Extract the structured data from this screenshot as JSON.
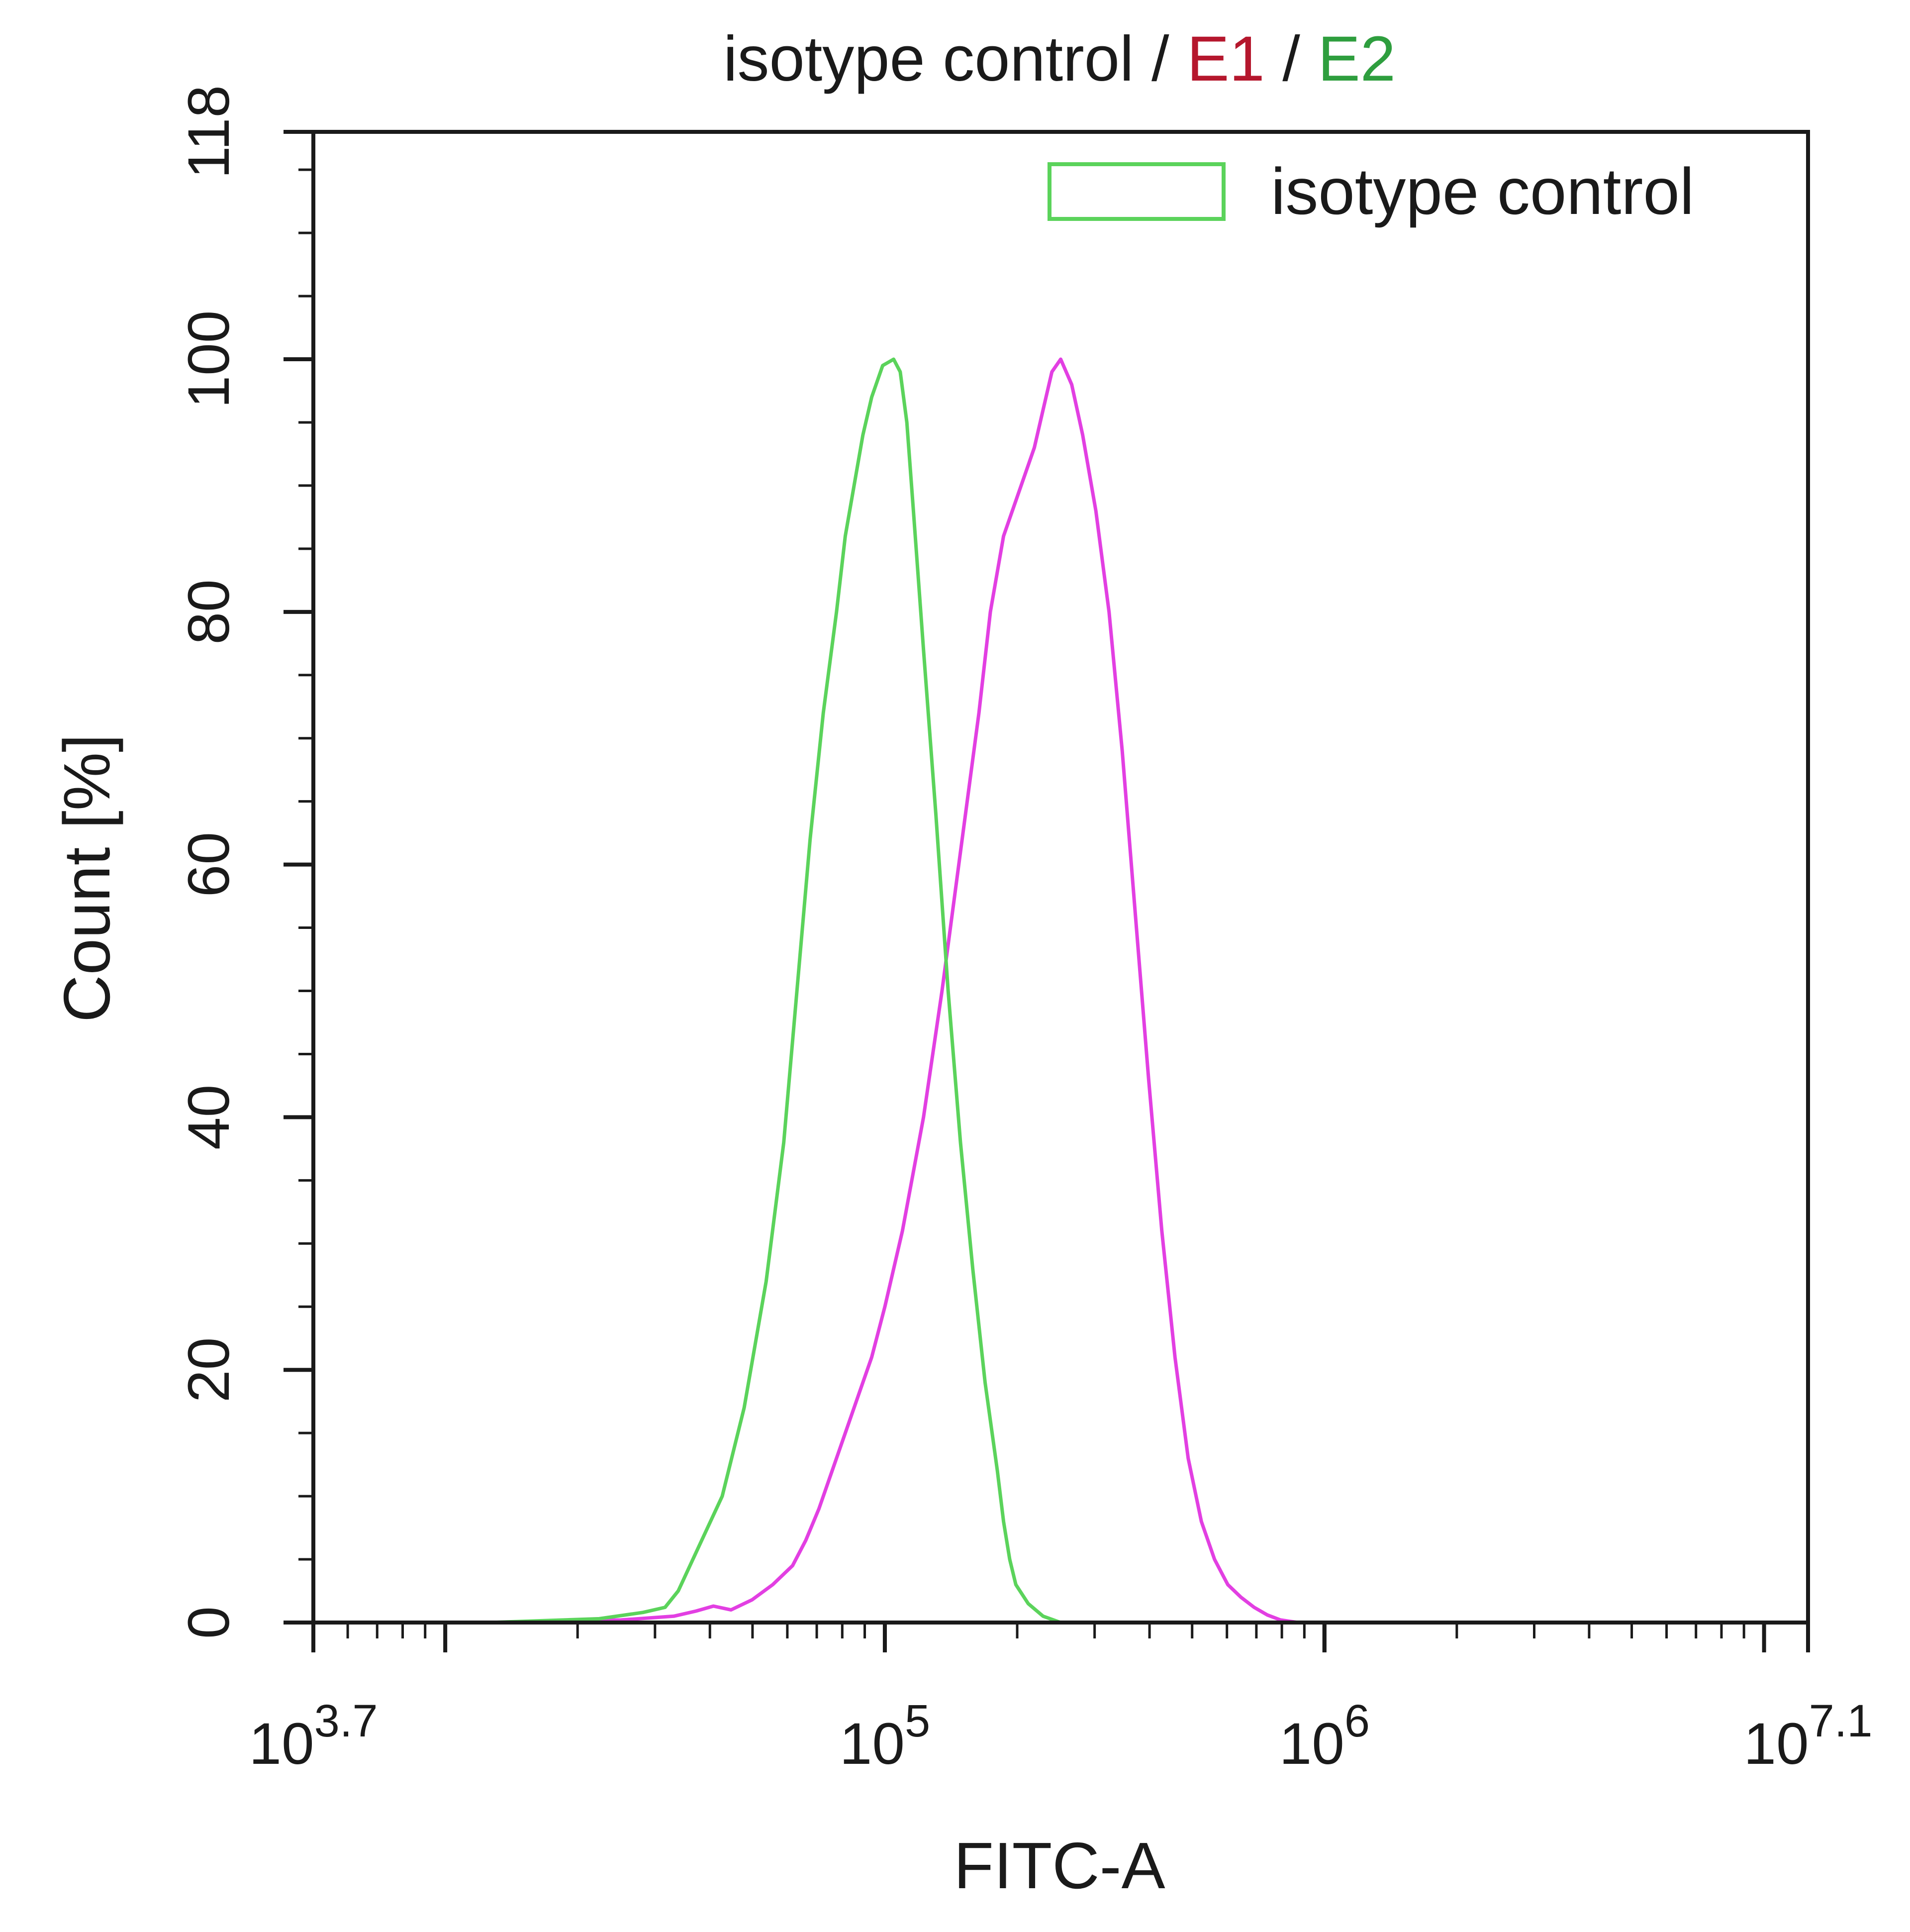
{
  "chart_data": {
    "type": "line",
    "title_parts": [
      {
        "text": "isotype control",
        "color": "#1a1a1a"
      },
      {
        "text": " / ",
        "color": "#1a1a1a"
      },
      {
        "text": "E1",
        "color": "#b5172d"
      },
      {
        "text": " / ",
        "color": "#1a1a1a"
      },
      {
        "text": "E2",
        "color": "#2e9e3e"
      }
    ],
    "xlabel": "FITC-A",
    "ylabel": "Count  [%]",
    "x_scale": "log",
    "xlim": [
      5011.87,
      12589254.1
    ],
    "ylim": [
      0,
      118
    ],
    "x_ticks": [
      {
        "value": 5011.87,
        "base": "10",
        "exp": "3.7"
      },
      {
        "value": 100000,
        "base": "10",
        "exp": "5"
      },
      {
        "value": 1000000,
        "base": "10",
        "exp": "6"
      },
      {
        "value": 12589254.1,
        "base": "10",
        "exp": "7.1"
      }
    ],
    "y_ticks": [
      {
        "value": 0,
        "label": "0"
      },
      {
        "value": 20,
        "label": "20"
      },
      {
        "value": 40,
        "label": "40"
      },
      {
        "value": 60,
        "label": "60"
      },
      {
        "value": 80,
        "label": "80"
      },
      {
        "value": 100,
        "label": "100"
      },
      {
        "value": 118,
        "label": "118"
      }
    ],
    "grid": false,
    "legend_position": "top-right",
    "legend": [
      {
        "name": "isotype control",
        "color": "#5bd35b"
      }
    ],
    "series": [
      {
        "name": "isotype control",
        "color": "#5bd35b",
        "x": [
          12589,
          22387,
          28184,
          31623,
          33884,
          37154,
          42658,
          47863,
          53703,
          58884,
          63096,
          67608,
          72444,
          77625,
          81283,
          85114,
          89125,
          93325,
          98855,
          104713,
          108393,
          112202,
          116145,
          122462,
          130617,
          139316,
          148594,
          158489,
          169044,
          180302,
          186209,
          192308,
          198609,
          211836,
          229087,
          251189
        ],
        "values": [
          0,
          0.3,
          0.8,
          1.2,
          2.5,
          5.5,
          10,
          17,
          27,
          38,
          50,
          62,
          72,
          80,
          86,
          90,
          94,
          97,
          99.5,
          100,
          99,
          95,
          88,
          77,
          64,
          50,
          38,
          28,
          19,
          12,
          8,
          5,
          3,
          1.5,
          0.5,
          0
        ]
      },
      {
        "name": "E1",
        "color": "#e23fe2",
        "x": [
          12589,
          25119,
          33113,
          37154,
          40738,
          44668,
          49888,
          55590,
          61660,
          66069,
          70795,
          75858,
          81283,
          87096,
          93325,
          99999,
          109648,
          122462,
          134896,
          148594,
          163682,
          173780,
          186209,
          199526,
          208930,
          218776,
          229087,
          239883,
          251189,
          266073,
          281838,
          301995,
          323594,
          346737,
          371535,
          398107,
          426580,
          457088,
          489779,
          524807,
          562341,
          602560,
          645654,
          691831,
          741310,
          794328,
          831764,
          870964
        ],
        "values": [
          0,
          0.2,
          0.5,
          0.9,
          1.3,
          1.0,
          1.8,
          3.0,
          4.5,
          6.5,
          9,
          12,
          15,
          18,
          21,
          25,
          31,
          40,
          50,
          61,
          72,
          80,
          86,
          89,
          91,
          93,
          96,
          99,
          100,
          98,
          94,
          88,
          80,
          69,
          56,
          43,
          31,
          21,
          13,
          8,
          5,
          3,
          2,
          1.2,
          0.6,
          0.2,
          0.1,
          0
        ]
      }
    ]
  }
}
